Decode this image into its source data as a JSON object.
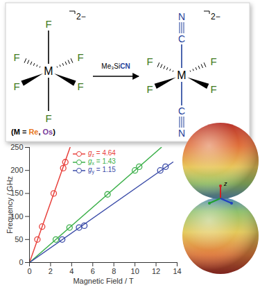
{
  "chart_data": {
    "type": "scatter",
    "x_label": "Magnetic Field / T",
    "y_label": "Frequency / GHz",
    "xlim": [
      0,
      14
    ],
    "ylim": [
      0,
      250
    ],
    "xticks": [
      0,
      2,
      4,
      6,
      8,
      10,
      12,
      14
    ],
    "yticks": [
      0,
      50,
      100,
      150,
      200,
      250
    ],
    "grid": false,
    "legend": "top",
    "series": [
      {
        "name": "gz = 4.64",
        "color": "#e8413c",
        "marker": "circle",
        "line_style": "solid",
        "x": [
          0.75,
          1.2,
          2.3,
          3.2,
          3.4
        ],
        "values": [
          50,
          78,
          150,
          205,
          218
        ],
        "fit_x": [
          0,
          3.85
        ],
        "fit_values": [
          0,
          250
        ]
      },
      {
        "name": "gx = 1.43",
        "color": "#3cb04a",
        "marker": "circle",
        "line_style": "solid",
        "x": [
          2.5,
          3.8,
          7.4,
          10,
          10.4
        ],
        "values": [
          50,
          76,
          148,
          200,
          208
        ],
        "fit_x": [
          0,
          12.5
        ],
        "fit_values": [
          0,
          250
        ]
      },
      {
        "name": "gy = 1.15",
        "color": "#3a4ba8",
        "marker": "circle",
        "line_style": "solid",
        "x": [
          3.1,
          4.7,
          5.2,
          12.4,
          12.9
        ],
        "values": [
          50,
          76,
          80,
          200,
          208
        ],
        "fit_x": [
          0,
          13.6
        ],
        "fit_values": [
          0,
          218
        ]
      }
    ]
  },
  "scheme": {
    "ligand": "F",
    "metal": "M",
    "charge": "2−",
    "axial": [
      "C",
      "N"
    ],
    "reagent": [
      "Me₃Si",
      "CN"
    ],
    "metal_note": {
      "prefix": "(M = ",
      "metals": [
        "Re",
        "Os"
      ],
      "separator": ", ",
      "suffix": ")"
    }
  },
  "sphere": {
    "axis_label": "z"
  }
}
